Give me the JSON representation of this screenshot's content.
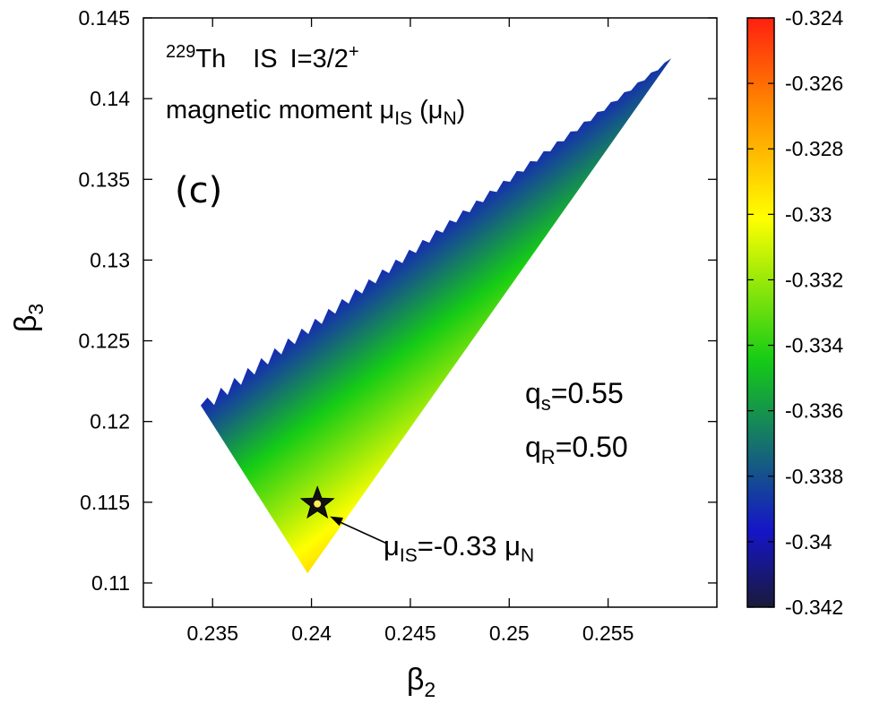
{
  "chart_data": {
    "type": "heatmap",
    "title_parts": {
      "mass_number": "229",
      "element": "Th",
      "state": "IS",
      "spin": "I=3/2",
      "parity": "+",
      "quantity": "magnetic moment",
      "symbol": "μ",
      "symbol_sub": "IS",
      "unit_open": "(μ",
      "unit_sub": "N",
      "unit_close": ")"
    },
    "panel_label": "(c)",
    "xlabel": "β",
    "xlabel_sub": "2",
    "ylabel": "β",
    "ylabel_sub": "3",
    "xlim": [
      0.2315,
      0.2605
    ],
    "ylim": [
      0.1085,
      0.145
    ],
    "x_ticks": [
      "0.235",
      "0.24",
      "0.245",
      "0.25",
      "0.255"
    ],
    "x_tick_values": [
      0.235,
      0.24,
      0.245,
      0.25,
      0.255
    ],
    "y_ticks": [
      "0.11",
      "0.115",
      "0.12",
      "0.125",
      "0.13",
      "0.135",
      "0.14",
      "0.145"
    ],
    "y_tick_values": [
      0.11,
      0.115,
      0.12,
      0.125,
      0.13,
      0.135,
      0.14,
      0.145
    ],
    "colorbar": {
      "min": -0.342,
      "max": -0.324,
      "ticks": [
        "-0.324",
        "-0.326",
        "-0.328",
        "-0.33",
        "-0.332",
        "-0.334",
        "-0.336",
        "-0.338",
        "-0.34",
        "-0.342"
      ],
      "tick_values": [
        -0.324,
        -0.326,
        -0.328,
        -0.33,
        -0.332,
        -0.334,
        -0.336,
        -0.338,
        -0.34,
        -0.342
      ],
      "colors": [
        "#1a1a3a",
        "#1515c8",
        "#15cc15",
        "#ffff00",
        "#ff8800",
        "#ff2010"
      ]
    },
    "region": {
      "vertices": [
        [
          0.2344,
          0.121
        ],
        [
          0.2582,
          0.1425
        ],
        [
          0.2398,
          0.1106
        ]
      ],
      "value_range": [
        -0.342,
        -0.325
      ]
    },
    "params": [
      {
        "name": "q",
        "sub": "s",
        "value": "=0.55"
      },
      {
        "name": "q",
        "sub": "R",
        "value": "=0.50"
      }
    ],
    "marker": {
      "x": 0.2403,
      "y": 0.1149,
      "symbol": "star",
      "label_pre": "μ",
      "label_sub": "IS",
      "label_mid": "=-0.33 μ",
      "label_sub2": "N"
    }
  }
}
